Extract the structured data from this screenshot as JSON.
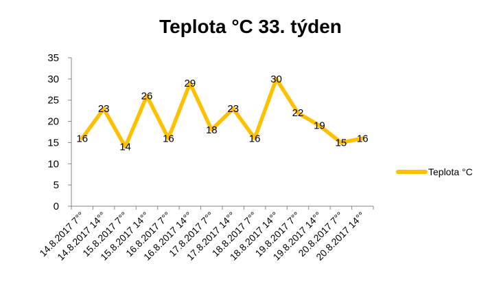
{
  "chart_data": {
    "type": "line",
    "title": "Teplota °C 33. týden",
    "xlabel": "",
    "ylabel": "",
    "ylim": [
      0,
      35
    ],
    "yticks": [
      0,
      5,
      10,
      15,
      20,
      25,
      30,
      35
    ],
    "grid": false,
    "legend_position": "right",
    "categories": [
      "14.8.2017 7°°",
      "14.8.2017 14°°",
      "15.8.2017 7°°",
      "15.8.2017 14°°",
      "16.8.2017 7°°",
      "16.8.2017 14°°",
      "17.8.2017 7°°",
      "17.8.2017 14°°",
      "18.8.2017 7°°",
      "18.8.2017 14°°",
      "19.8.2017 7°°",
      "19.8.2017 14°°",
      "20.8.2017 7°°",
      "20.8.2017 14°°"
    ],
    "series": [
      {
        "name": "Teplota °C",
        "color": "#FFC000",
        "values": [
          16,
          23,
          14,
          26,
          16,
          29,
          18,
          23,
          16,
          30,
          22,
          19,
          15,
          16
        ]
      }
    ]
  }
}
